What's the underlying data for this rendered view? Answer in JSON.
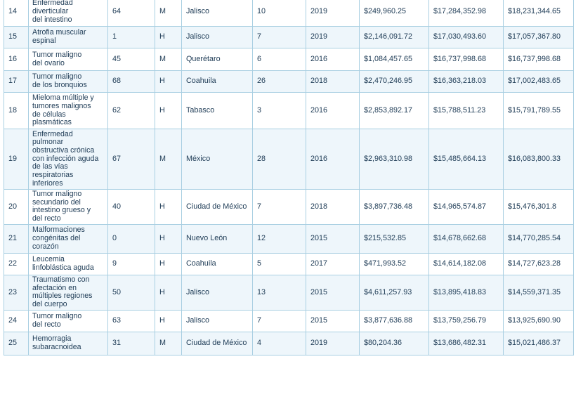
{
  "rows": [
    {
      "n": "14",
      "cause": "Enfermedad diverticular del intestino",
      "cause_lines": [
        "Enfermedad",
        "diverticular",
        "del intestino"
      ],
      "age": "64",
      "sex": "M",
      "state": "Jalisco",
      "days": "10",
      "year": "2019",
      "c1": "$249,960.25",
      "c2": "$17,284,352.98",
      "c3": "$18,231,344.65"
    },
    {
      "n": "15",
      "cause": "Atrofia muscular espinal",
      "cause_lines": [
        "Atrofia muscular",
        "espinal"
      ],
      "age": "1",
      "sex": "H",
      "state": "Jalisco",
      "days": "7",
      "year": "2019",
      "c1": "$2,146,091.72",
      "c2": "$17,030,493.60",
      "c3": "$17,057,367.80"
    },
    {
      "n": "16",
      "cause": "Tumor maligno del ovario",
      "cause_lines": [
        "Tumor maligno",
        "del ovario"
      ],
      "age": "45",
      "sex": "M",
      "state": "Querétaro",
      "days": "6",
      "year": "2016",
      "c1": "$1,084,457.65",
      "c2": "$16,737,998.68",
      "c3": "$16,737,998.68"
    },
    {
      "n": "17",
      "cause": "Tumor maligno de los bronquios",
      "cause_lines": [
        "Tumor maligno",
        "de los bronquios"
      ],
      "age": "68",
      "sex": "H",
      "state": "Coahuila",
      "days": "26",
      "year": "2018",
      "c1": "$2,470,246.95",
      "c2": "$16,363,218.03",
      "c3": "$17,002,483.65"
    },
    {
      "n": "18",
      "cause": "Mieloma múltiple y tumores malignos de células plasmáticas",
      "cause_lines": [
        "Mieloma múltiple y",
        "tumores malignos",
        "de células",
        "plasmáticas"
      ],
      "age": "62",
      "sex": "H",
      "state": "Tabasco",
      "days": "3",
      "year": "2016",
      "c1": "$2,853,892.17",
      "c2": "$15,788,511.23",
      "c3": "$15,791,789.55"
    },
    {
      "n": "19",
      "cause": "Enfermedad pulmonar obstructiva crónica con infección aguda de las vías respiratorias inferiores",
      "cause_lines": [
        "Enfermedad",
        "pulmonar",
        "obstructiva crónica",
        "con infección aguda",
        "de las vías",
        "respiratorias",
        "inferiores"
      ],
      "age": "67",
      "sex": "M",
      "state": "México",
      "days": "28",
      "year": "2016",
      "c1": "$2,963,310.98",
      "c2": "$15,485,664.13",
      "c3": "$16,083,800.33"
    },
    {
      "n": "20",
      "cause": "Tumor maligno secundario del intestino grueso y del recto",
      "cause_lines": [
        "Tumor maligno",
        "secundario del",
        "intestino grueso y",
        "del recto"
      ],
      "age": "40",
      "sex": "H",
      "state": "Ciudad de México",
      "days": "7",
      "year": "2018",
      "c1": "$3,897,736.48",
      "c2": "$14,965,574.87",
      "c3": "$15,476,301.8"
    },
    {
      "n": "21",
      "cause": "Malformaciones congénitas del corazón",
      "cause_lines": [
        "Malformaciones",
        "congénitas del",
        "corazón"
      ],
      "age": "0",
      "sex": "H",
      "state": "Nuevo León",
      "days": "12",
      "year": "2015",
      "c1": "$215,532.85",
      "c2": "$14,678,662.68",
      "c3": "$14,770,285.54"
    },
    {
      "n": "22",
      "cause": "Leucemia linfoblástica aguda",
      "cause_lines": [
        "Leucemia",
        "linfoblástica aguda"
      ],
      "age": "9",
      "sex": "H",
      "state": "Coahuila",
      "days": "5",
      "year": "2017",
      "c1": "$471,993.52",
      "c2": "$14,614,182.08",
      "c3": "$14,727,623.28"
    },
    {
      "n": "23",
      "cause": "Traumatismo con afectación en múltiples regiones del cuerpo",
      "cause_lines": [
        "Traumatismo con",
        "afectación en",
        "múltiples regiones",
        "del cuerpo"
      ],
      "age": "50",
      "sex": "H",
      "state": "Jalisco",
      "days": "13",
      "year": "2015",
      "c1": "$4,611,257.93",
      "c2": "$13,895,418.83",
      "c3": "$14,559,371.35"
    },
    {
      "n": "24",
      "cause": "Tumor maligno del recto",
      "cause_lines": [
        "Tumor maligno",
        "del recto"
      ],
      "age": "63",
      "sex": "H",
      "state": "Jalisco",
      "days": "7",
      "year": "2015",
      "c1": "$3,877,636.88",
      "c2": "$13,759,256.79",
      "c3": "$13,925,690.90"
    },
    {
      "n": "25",
      "cause": "Hemorragia subaracnoidea",
      "cause_lines": [
        "Hemorragia",
        "subaracnoidea"
      ],
      "age": "31",
      "sex": "M",
      "state": "Ciudad de México",
      "days": "4",
      "year": "2019",
      "c1": "$80,204.36",
      "c2": "$13,686,482.31",
      "c3": "$15,021,486.37"
    }
  ]
}
